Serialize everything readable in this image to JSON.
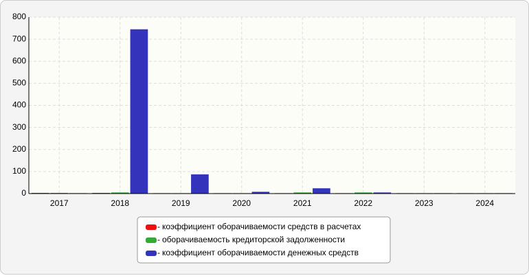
{
  "chart_data": {
    "type": "bar",
    "categories": [
      "2017",
      "2018",
      "2019",
      "2020",
      "2021",
      "2022",
      "2023",
      "2024"
    ],
    "series": [
      {
        "name": "коэффициент оборачиваемости средств в расчетах",
        "color": "#ee1111",
        "values": [
          3,
          3,
          2,
          2,
          2,
          2,
          2,
          2
        ]
      },
      {
        "name": "оборачиваемость кредиторской задолженности",
        "color": "#33aa33",
        "values": [
          3,
          5,
          2,
          2,
          5,
          5,
          2,
          2
        ]
      },
      {
        "name": "коэффициент оборачиваемости денежных средств",
        "color": "#3333bb",
        "values": [
          2,
          745,
          87,
          8,
          24,
          5,
          2,
          2
        ]
      }
    ],
    "ylim": [
      0,
      800
    ],
    "yticks": [
      0,
      100,
      200,
      300,
      400,
      500,
      600,
      700,
      800
    ],
    "grid": true
  }
}
